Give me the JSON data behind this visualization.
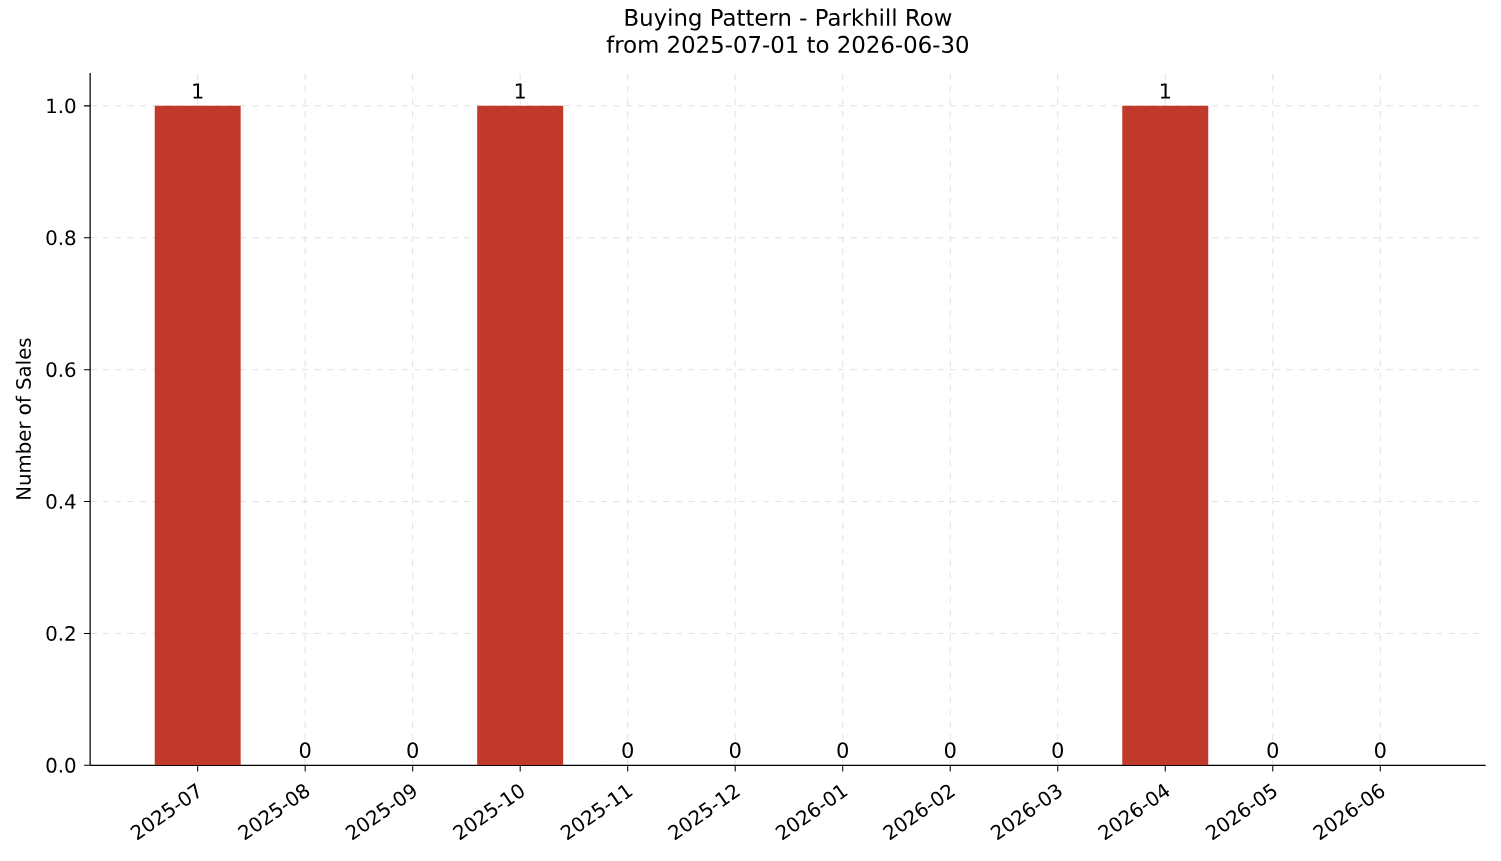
{
  "chart_data": {
    "type": "bar",
    "title": "Buying Pattern - Parkhill Row",
    "subtitle": "from 2025-07-01 to 2026-06-30",
    "ylabel": "Number of Sales",
    "categories": [
      "2025-07",
      "2025-08",
      "2025-09",
      "2025-10",
      "2025-11",
      "2025-12",
      "2026-01",
      "2026-02",
      "2026-03",
      "2026-04",
      "2026-05",
      "2026-06"
    ],
    "values": [
      1,
      0,
      0,
      1,
      0,
      0,
      0,
      0,
      0,
      1,
      0,
      0
    ],
    "color": "#c0392b",
    "ylim": [
      0,
      1.05
    ],
    "yticks": [
      {
        "value": 0,
        "label": "0.0"
      },
      {
        "value": 0.2,
        "label": "0.2"
      },
      {
        "value": 0.4,
        "label": "0.4"
      },
      {
        "value": 0.6,
        "label": "0.6"
      },
      {
        "value": 0.8,
        "label": "0.8"
      },
      {
        "value": 1,
        "label": "1.0"
      }
    ],
    "grid": true,
    "data_labels": true
  }
}
